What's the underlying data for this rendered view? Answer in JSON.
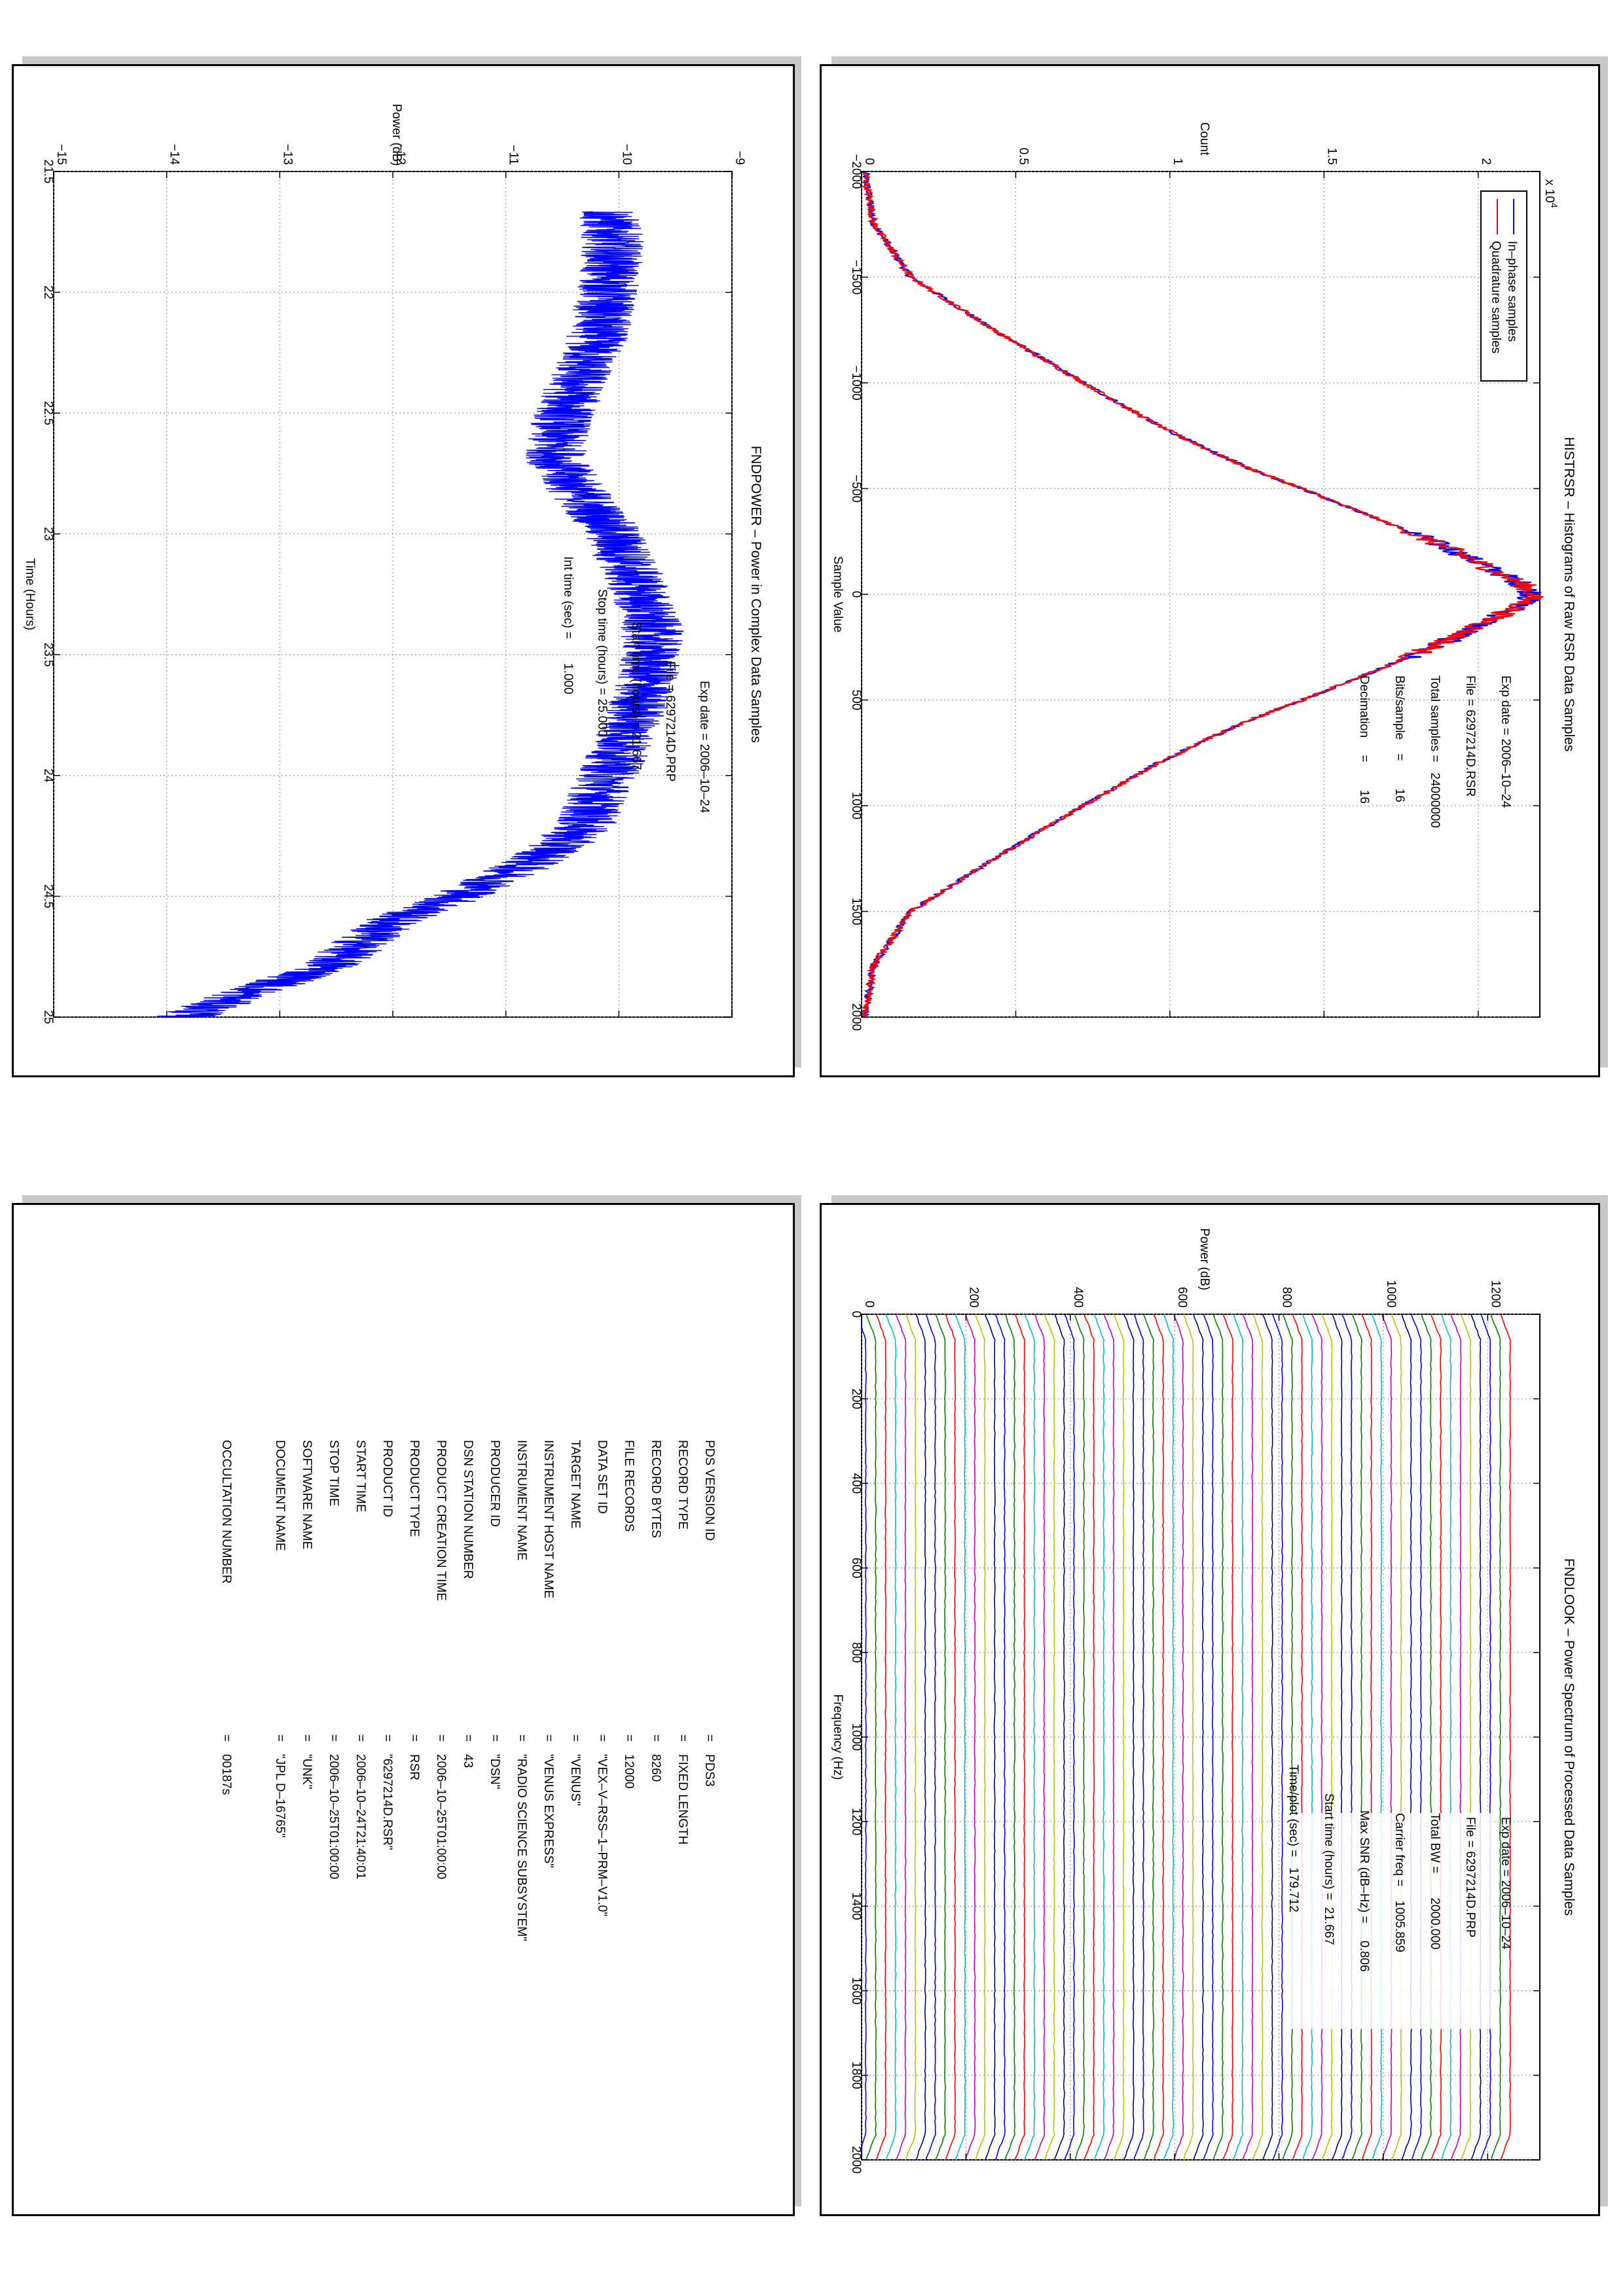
{
  "colors": {
    "blue": "#0000ff",
    "red": "#ff0000",
    "grid": "#9a9a9a",
    "shadow": "#c8c8c8"
  },
  "histogram": {
    "title": "HISTRSR – Histograms of Raw RSR Data Samples",
    "xlabel": "Sample Value",
    "ylabel": "Count",
    "exponent": "x 10",
    "exponent_power": "4",
    "x_ticks": [
      "−2000",
      "−1500",
      "−1000",
      "−500",
      "0",
      "500",
      "1000",
      "1500",
      "2000"
    ],
    "y_ticks": [
      "0",
      "0.5",
      "1",
      "1.5",
      "2"
    ],
    "legend": [
      "In–phase samples",
      "Quadrature samples"
    ],
    "info": [
      "Exp date = 2006–10–24",
      "File = 6297214D.RSR",
      "Total samples =   24000000",
      "Bits/sample    =        16",
      "Decimation     =        16"
    ]
  },
  "power": {
    "title": "FNDPOWER – Power in Complex Data Samples",
    "xlabel": "Time (Hours)",
    "ylabel": "Power (dB)",
    "x_ticks": [
      "21.5",
      "22",
      "22.5",
      "23",
      "23.5",
      "24",
      "24.5",
      "25"
    ],
    "y_ticks": [
      "−15",
      "−14",
      "−13",
      "−12",
      "−11",
      "−10",
      "−9"
    ],
    "info": [
      "Exp date = 2006–10–24",
      "File = 6297214D.PRP",
      "Start time (hours) = 21.667",
      "Stop time (hours) = 25.000",
      "Int time (sec) =       1.000"
    ]
  },
  "spectrum": {
    "title": "FNDLOOK – Power Spectrum of Processed Data Samples",
    "xlabel": "Frequency (Hz)",
    "ylabel": "Power (dB)",
    "x_ticks": [
      "0",
      "200",
      "400",
      "600",
      "800",
      "1000",
      "1200",
      "1400",
      "1600",
      "1800",
      "2000"
    ],
    "y_ticks": [
      "0",
      "200",
      "400",
      "600",
      "800",
      "1000",
      "1200"
    ],
    "info": [
      "Exp date = 2006–10–24",
      "File = 6297214D.PRP",
      "Total BW =       2000.000",
      "Carrier freq =    1005.859",
      "Max SNR (dB–Hz) =     0.806",
      "Start time (hours) =  21.667",
      "Time/plot (sec) =   179.712"
    ]
  },
  "label_table": {
    "rows": [
      [
        "PDS VERSION ID",
        "=",
        "PDS3"
      ],
      [
        "RECORD TYPE",
        "=",
        "FIXED LENGTH"
      ],
      [
        "RECORD BYTES",
        "=",
        "8260"
      ],
      [
        "FILE RECORDS",
        "=",
        "12000"
      ],
      [
        "DATA SET ID",
        "=",
        "\"VEX–V–RSS–1–PRM–V1.0\""
      ],
      [
        "TARGET NAME",
        "=",
        "\"VENUS\""
      ],
      [
        "INSTRUMENT HOST NAME",
        "=",
        "\"VENUS EXPRESS\""
      ],
      [
        "INSTRUMENT NAME",
        "=",
        "\"RADIO SCIENCE SUBSYSTEM\""
      ],
      [
        "PRODUCER ID",
        "=",
        "\"DSN\""
      ],
      [
        "DSN STATION NUMBER",
        "=",
        "43"
      ],
      [
        "PRODUCT CREATION TIME",
        "=",
        "2006–10–25T01:00:00"
      ],
      [
        "PRODUCT TYPE",
        "=",
        "RSR"
      ],
      [
        "PRODUCT ID",
        "=",
        "\"6297214D.RSR\""
      ],
      [
        "START TIME",
        "=",
        "2006–10–24T21:40:01"
      ],
      [
        "STOP TIME",
        "=",
        "2006–10–25T01:00:00"
      ],
      [
        "SOFTWARE NAME",
        "=",
        "\"UNK\""
      ],
      [
        "DOCUMENT NAME",
        "=",
        "\"JPL D–16765\""
      ],
      [
        "OCCULTATION NUMBER",
        "=",
        "00187s"
      ]
    ]
  },
  "chart_data": [
    {
      "type": "line",
      "title": "HISTRSR – Histograms of Raw RSR Data Samples",
      "xlabel": "Sample Value",
      "ylabel": "Count",
      "xlim": [
        -2000,
        2000
      ],
      "ylim": [
        0,
        22000
      ],
      "y_multiplier": 10000,
      "grid": true,
      "legend_position": "top-left",
      "x": [
        -2000,
        -1750,
        -1500,
        -1250,
        -1000,
        -900,
        -800,
        -700,
        -600,
        -500,
        -400,
        -300,
        -200,
        -100,
        -50,
        0,
        50,
        100,
        200,
        300,
        400,
        500,
        600,
        700,
        800,
        900,
        1000,
        1250,
        1500,
        1750,
        2000
      ],
      "series": [
        {
          "name": "In–phase samples",
          "color": "blue",
          "values": [
            100,
            400,
            1600,
            4300,
            7200,
            8400,
            9600,
            11000,
            12500,
            14300,
            16000,
            17700,
            19300,
            20700,
            21400,
            21800,
            21400,
            20700,
            19300,
            17700,
            16000,
            14300,
            12500,
            11000,
            9600,
            8400,
            7200,
            4300,
            1600,
            400,
            100
          ]
        },
        {
          "name": "Quadrature samples",
          "color": "red",
          "values": [
            100,
            400,
            1600,
            4300,
            7200,
            8400,
            9600,
            11000,
            12500,
            14300,
            16000,
            17700,
            19300,
            20700,
            21400,
            21800,
            21400,
            20700,
            19300,
            17700,
            16000,
            14300,
            12500,
            11000,
            9600,
            8400,
            7200,
            4300,
            1600,
            400,
            100
          ]
        }
      ]
    },
    {
      "type": "line",
      "title": "FNDPOWER – Power in Complex Data Samples",
      "xlabel": "Time (Hours)",
      "ylabel": "Power (dB)",
      "xlim": [
        21.5,
        25
      ],
      "ylim": [
        -15,
        -9
      ],
      "grid": true,
      "x": [
        21.667,
        21.8,
        22.0,
        22.2,
        22.4,
        22.6,
        22.7,
        22.8,
        23.0,
        23.2,
        23.4,
        23.6,
        23.8,
        24.0,
        24.2,
        24.3,
        24.4,
        24.5,
        24.6,
        24.7,
        24.8,
        24.9,
        25.0
      ],
      "series": [
        {
          "name": "",
          "color": "blue",
          "values": [
            -10.1,
            -10.05,
            -10.1,
            -10.2,
            -10.4,
            -10.55,
            -10.55,
            -10.4,
            -10.05,
            -9.85,
            -9.7,
            -9.75,
            -9.9,
            -10.1,
            -10.3,
            -10.55,
            -10.95,
            -11.4,
            -12.0,
            -12.3,
            -12.6,
            -13.3,
            -13.85
          ]
        }
      ]
    },
    {
      "type": "line",
      "title": "FNDLOOK – Power Spectrum of Processed Data Samples",
      "xlabel": "Frequency (Hz)",
      "ylabel": "Power (dB)",
      "xlim": [
        0,
        2000
      ],
      "ylim": [
        0,
        1300
      ],
      "grid": true,
      "series_count": 66,
      "series_spacing": 19,
      "series_cycle_colors": [
        "blue",
        "green",
        "red",
        "cyan",
        "magenta",
        "olive",
        "navy"
      ]
    }
  ]
}
